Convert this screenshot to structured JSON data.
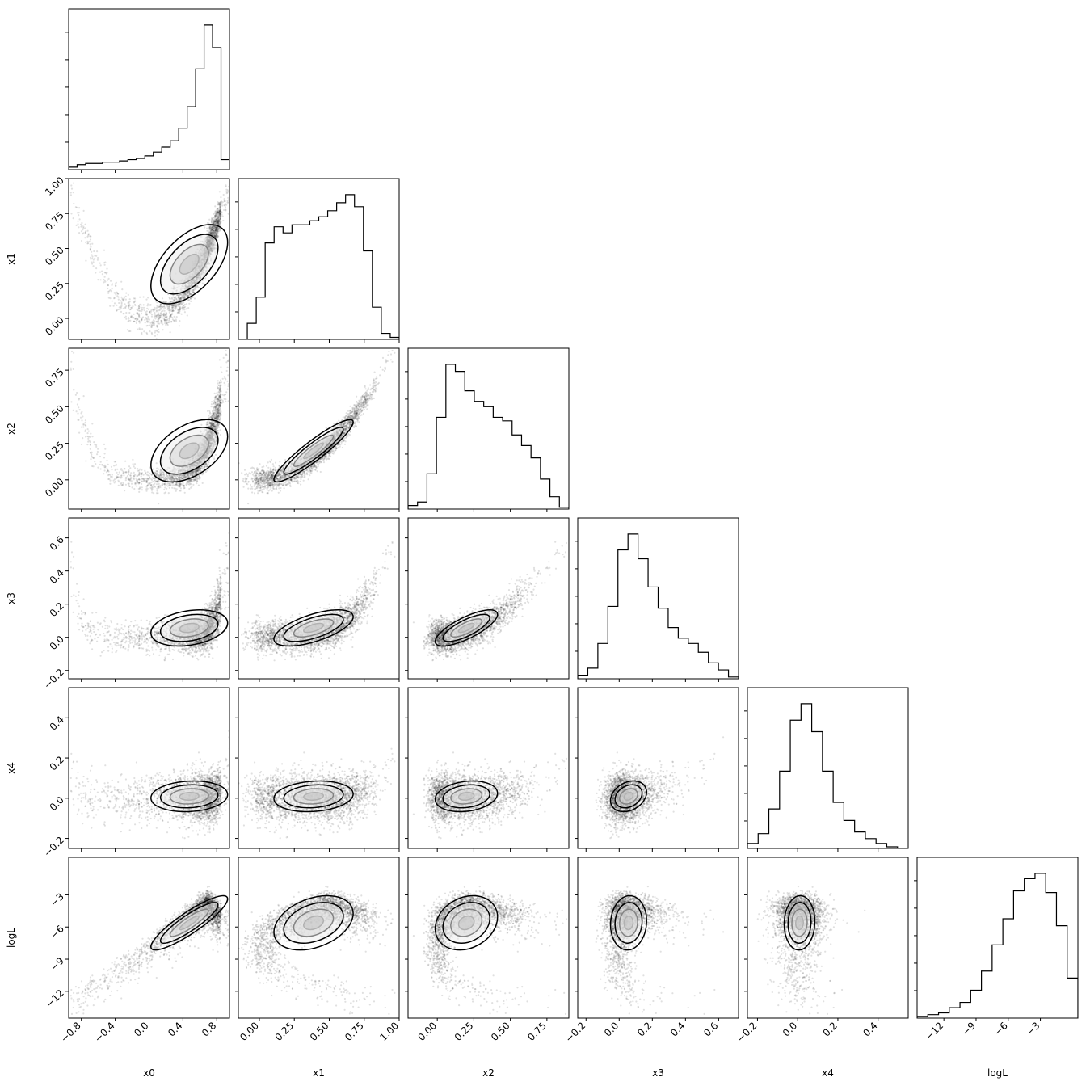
{
  "chart_data": {
    "type": "corner",
    "params": [
      "x0",
      "x1",
      "x2",
      "x3",
      "x4",
      "logL"
    ],
    "axis_labels": [
      "x0",
      "x1",
      "x2",
      "x3",
      "x4",
      "logL"
    ],
    "ranges": [
      [
        -0.95,
        0.95
      ],
      [
        -0.15,
        1.0
      ],
      [
        -0.2,
        0.9
      ],
      [
        -0.25,
        0.72
      ],
      [
        -0.25,
        0.55
      ],
      [
        -14.5,
        0.5
      ]
    ],
    "ticks": [
      [
        -0.8,
        -0.4,
        0.0,
        0.4,
        0.8
      ],
      [
        0.0,
        0.25,
        0.5,
        0.75,
        1.0
      ],
      [
        0.0,
        0.25,
        0.5,
        0.75
      ],
      [
        -0.2,
        0.0,
        0.2,
        0.4,
        0.6
      ],
      [
        -0.2,
        0.0,
        0.2,
        0.4
      ],
      [
        -12,
        -9,
        -6,
        -3
      ]
    ],
    "tick_labels": [
      [
        "−0.8",
        "−0.4",
        "0.0",
        "0.4",
        "0.8"
      ],
      [
        "0.00",
        "0.25",
        "0.50",
        "0.75",
        "1.00"
      ],
      [
        "0.00",
        "0.25",
        "0.50",
        "0.75"
      ],
      [
        "−0.2",
        "0.0",
        "0.2",
        "0.4",
        "0.6"
      ],
      [
        "−0.2",
        "0.0",
        "0.2",
        "0.4"
      ],
      [
        "−12",
        "−9",
        "−6",
        "−3"
      ]
    ],
    "histograms": [
      [
        2,
        4,
        5,
        5,
        6,
        6,
        7,
        8,
        9,
        11,
        14,
        18,
        23,
        33,
        50,
        80,
        115,
        97,
        8
      ],
      [
        0,
        8,
        21,
        48,
        56,
        53,
        57,
        57,
        59,
        61,
        64,
        68,
        72,
        66,
        44,
        16,
        3,
        1
      ],
      [
        2,
        4,
        20,
        52,
        82,
        78,
        67,
        61,
        58,
        52,
        50,
        42,
        36,
        29,
        17,
        7,
        1
      ],
      [
        2,
        6,
        20,
        41,
        73,
        82,
        68,
        52,
        40,
        29,
        23,
        20,
        15,
        9,
        5,
        1
      ],
      [
        3,
        9,
        24,
        47,
        78,
        88,
        71,
        47,
        28,
        17,
        10,
        6,
        3,
        1,
        0
      ],
      [
        1,
        2,
        3,
        6,
        9,
        16,
        27,
        42,
        57,
        73,
        80,
        83,
        72,
        53,
        23
      ]
    ],
    "grid": false,
    "legend": "none"
  }
}
